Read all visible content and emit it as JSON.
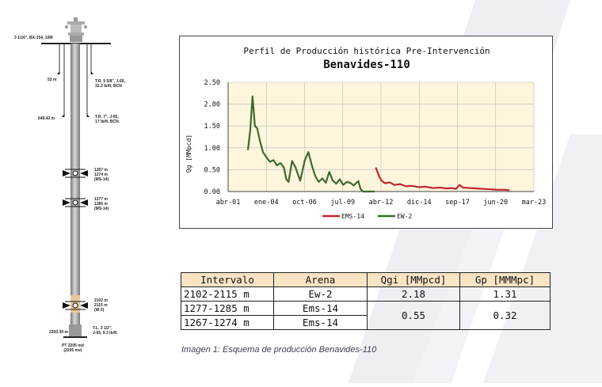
{
  "well": {
    "wellhead_label": "3 1/16\", BX-154, 10M",
    "depth_52": "52 m",
    "casing_958": "T.R. 9 5/8\", J-55,\n32.2 lb/ft, BCN",
    "depth_649": "649.43 m",
    "casing_7": "T.R. 7\", J-55,\n17 lb/ft, BCN",
    "perf_ms14_a": "1267 m\n1274 m\n(MS-14)",
    "perf_ms14_b": "1277 m\n1285 m\n(MS-14)",
    "perf_w2": "2102 m\n2115 m\n(W-2)",
    "depth_2200": "2200.39 m",
    "tubing": "T.L. 3 1/2\",\nJ-55, 9.3 lb/ft.",
    "pt": "PT 2205 md\n(2205 mv)"
  },
  "chart_data": {
    "type": "line",
    "title": "Perfil de Producción histórica Pre-Intervención",
    "subtitle": "Benavides-110",
    "xlabel": "",
    "ylabel": "Qg [MMpcd]",
    "x_ticks": [
      "abr-01",
      "ene-04",
      "oct-06",
      "jul-09",
      "abr-12",
      "dic-14",
      "sep-17",
      "jun-20",
      "mar-23"
    ],
    "y_ticks": [
      "0.00",
      "0.50",
      "1.00",
      "1.50",
      "2.00",
      "2.50"
    ],
    "ylim": [
      0,
      2.5
    ],
    "xlim": [
      "2001-04",
      "2023-03"
    ],
    "grid": true,
    "legend_position": "bottom",
    "background": "#fdf5dc",
    "series": [
      {
        "name": "EMS-14",
        "color": "#c0282d",
        "points": [
          [
            "2011-11",
            0.55
          ],
          [
            "2012-02",
            0.34
          ],
          [
            "2012-04",
            0.25
          ],
          [
            "2012-07",
            0.19
          ],
          [
            "2012-11",
            0.21
          ],
          [
            "2013-03",
            0.15
          ],
          [
            "2013-08",
            0.17
          ],
          [
            "2014-01",
            0.12
          ],
          [
            "2014-06",
            0.13
          ],
          [
            "2014-12",
            0.1
          ],
          [
            "2015-06",
            0.11
          ],
          [
            "2015-12",
            0.08
          ],
          [
            "2016-06",
            0.09
          ],
          [
            "2016-12",
            0.07
          ],
          [
            "2017-04",
            0.08
          ],
          [
            "2017-08",
            0.06
          ],
          [
            "2017-11",
            0.15
          ],
          [
            "2018-02",
            0.09
          ],
          [
            "2018-08",
            0.08
          ],
          [
            "2019-02",
            0.07
          ],
          [
            "2019-08",
            0.06
          ],
          [
            "2020-02",
            0.05
          ],
          [
            "2020-08",
            0.04
          ],
          [
            "2021-02",
            0.04
          ],
          [
            "2021-06",
            0.03
          ]
        ]
      },
      {
        "name": "EW-2",
        "color": "#3c6a2e",
        "points": [
          [
            "2002-09",
            0.95
          ],
          [
            "2002-11",
            1.4
          ],
          [
            "2003-01",
            2.18
          ],
          [
            "2003-03",
            1.5
          ],
          [
            "2003-05",
            1.45
          ],
          [
            "2003-07",
            1.2
          ],
          [
            "2003-10",
            0.9
          ],
          [
            "2004-01",
            0.78
          ],
          [
            "2004-04",
            0.68
          ],
          [
            "2004-07",
            0.72
          ],
          [
            "2004-10",
            0.6
          ],
          [
            "2005-01",
            0.65
          ],
          [
            "2005-04",
            0.55
          ],
          [
            "2005-06",
            0.28
          ],
          [
            "2005-08",
            0.22
          ],
          [
            "2005-11",
            0.7
          ],
          [
            "2006-02",
            0.55
          ],
          [
            "2006-06",
            0.25
          ],
          [
            "2006-10",
            0.72
          ],
          [
            "2007-01",
            0.9
          ],
          [
            "2007-04",
            0.6
          ],
          [
            "2007-07",
            0.35
          ],
          [
            "2007-10",
            0.22
          ],
          [
            "2008-01",
            0.3
          ],
          [
            "2008-04",
            0.2
          ],
          [
            "2008-07",
            0.45
          ],
          [
            "2008-10",
            0.25
          ],
          [
            "2009-01",
            0.18
          ],
          [
            "2009-04",
            0.28
          ],
          [
            "2009-07",
            0.15
          ],
          [
            "2009-10",
            0.22
          ],
          [
            "2010-01",
            0.2
          ],
          [
            "2010-04",
            0.14
          ],
          [
            "2010-08",
            0.24
          ],
          [
            "2010-10",
            0.05
          ],
          [
            "2010-12",
            0.0
          ],
          [
            "2011-10",
            0.0
          ]
        ]
      }
    ]
  },
  "table": {
    "headers": [
      "Intervalo",
      "Arena",
      "Qgi [MMpcd]",
      "Gp [MMMpc]"
    ],
    "row1": {
      "intervalo": "2102-2115 m",
      "arena": "Ew-2",
      "qgi": "2.18",
      "gp": "1.31"
    },
    "row2": {
      "intervalo": "1277-1285 m",
      "arena": "Ems-14"
    },
    "row3": {
      "intervalo": "1267-1274 m",
      "arena": "Ems-14"
    },
    "merged_qgi": "0.55",
    "merged_gp": "0.32"
  },
  "caption": "Imagen 1: Esquema de producción Benavides-110",
  "colors": {
    "header_fill": "#fbe4c4",
    "plot_bg": "#fdf5dc",
    "ems14": "#c0282d",
    "ew2": "#3c6a2e"
  }
}
